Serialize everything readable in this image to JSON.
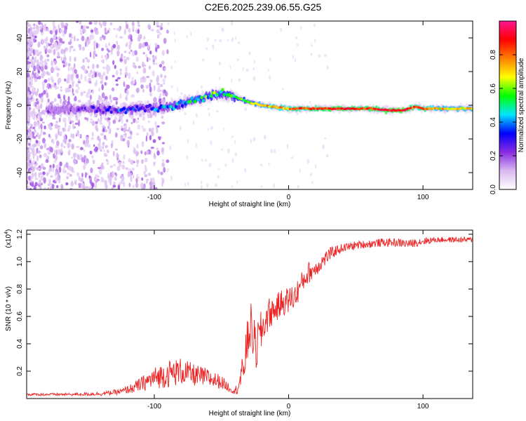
{
  "title": "C2E6.2025.239.06.55.G25",
  "chart_data": [
    {
      "type": "heatmap",
      "name": "spectrogram",
      "xlabel": "Height of straight line (km)",
      "ylabel": "Frequency (Hz)",
      "xlim": [
        -195,
        137
      ],
      "ylim": [
        -50,
        50
      ],
      "xticks": [
        -100,
        0,
        100
      ],
      "xtick_labels": [
        "-100",
        "0",
        "100"
      ],
      "yticks": [
        -40,
        -20,
        0,
        20,
        40
      ],
      "ytick_labels": [
        "-40",
        "-20",
        "0",
        "20",
        "40"
      ],
      "colorbar": {
        "label": "Normalized spectral amplitude",
        "range": [
          0,
          1
        ],
        "ticks": [
          0.0,
          0.2,
          0.4,
          0.6,
          0.8
        ],
        "tick_labels": [
          "0.0",
          "0.2",
          "0.4",
          "0.6",
          "0.8"
        ],
        "colors": [
          "#ffffff",
          "#d8b8f0",
          "#8a2be2",
          "#0000ff",
          "#00e5ff",
          "#00ff00",
          "#ffff00",
          "#ff8000",
          "#ff0000",
          "#ff1493"
        ]
      },
      "ridge": {
        "x": [
          -175,
          -150,
          -130,
          -110,
          -90,
          -75,
          -60,
          -50,
          -40,
          -30,
          -20,
          -10,
          0,
          20,
          40,
          60,
          75,
          85,
          95,
          100,
          110,
          137
        ],
        "y": [
          -3,
          -2,
          -3,
          -2,
          -1,
          2,
          5,
          7,
          5,
          2,
          0,
          -1,
          -2,
          -2,
          -2,
          -2,
          -3,
          -3,
          -1,
          -2,
          -2,
          -2
        ],
        "amplitude": [
          0.1,
          0.2,
          0.3,
          0.3,
          0.4,
          0.45,
          0.5,
          0.5,
          0.55,
          0.6,
          0.7,
          0.75,
          0.8,
          0.85,
          0.9,
          0.85,
          0.9,
          0.95,
          0.8,
          0.85,
          0.7,
          0.7
        ]
      }
    },
    {
      "type": "line",
      "name": "snr",
      "xlabel": "Height of straight line (km)",
      "ylabel": "SNR (10 * v/v)",
      "scale_label": "(x10",
      "scale_exponent": "4",
      "scale_suffix": ")",
      "xlim": [
        -195,
        137
      ],
      "ylim": [
        0,
        1.23
      ],
      "xticks": [
        -100,
        0,
        100
      ],
      "xtick_labels": [
        "-100",
        "0",
        "100"
      ],
      "yticks": [
        0.2,
        0.4,
        0.6,
        0.8,
        1.0,
        1.2
      ],
      "ytick_labels": [
        "0.2",
        "0.4",
        "0.6",
        "0.8",
        "1.0",
        "1.2"
      ],
      "color": "#ee2222",
      "series": [
        {
          "name": "SNR",
          "x": [
            -195,
            -160,
            -140,
            -125,
            -115,
            -100,
            -90,
            -80,
            -70,
            -60,
            -50,
            -40,
            -35,
            -30,
            -28,
            -25,
            -20,
            -15,
            -10,
            -5,
            0,
            5,
            10,
            15,
            20,
            25,
            30,
            35,
            40,
            50,
            60,
            70,
            80,
            90,
            100,
            110,
            120,
            137
          ],
          "mean": [
            0.03,
            0.03,
            0.035,
            0.05,
            0.08,
            0.15,
            0.18,
            0.2,
            0.17,
            0.15,
            0.12,
            0.05,
            0.15,
            0.45,
            0.55,
            0.35,
            0.5,
            0.62,
            0.65,
            0.7,
            0.72,
            0.75,
            0.85,
            0.92,
            0.95,
            1.0,
            1.05,
            1.08,
            1.1,
            1.12,
            1.13,
            1.14,
            1.14,
            1.13,
            1.15,
            1.16,
            1.16,
            1.16
          ],
          "noise": [
            0.01,
            0.01,
            0.015,
            0.02,
            0.04,
            0.08,
            0.1,
            0.1,
            0.08,
            0.07,
            0.05,
            0.02,
            0.12,
            0.18,
            0.15,
            0.2,
            0.15,
            0.12,
            0.1,
            0.1,
            0.1,
            0.1,
            0.08,
            0.08,
            0.06,
            0.06,
            0.05,
            0.04,
            0.03,
            0.03,
            0.03,
            0.03,
            0.03,
            0.03,
            0.03,
            0.02,
            0.02,
            0.02
          ]
        }
      ]
    }
  ]
}
